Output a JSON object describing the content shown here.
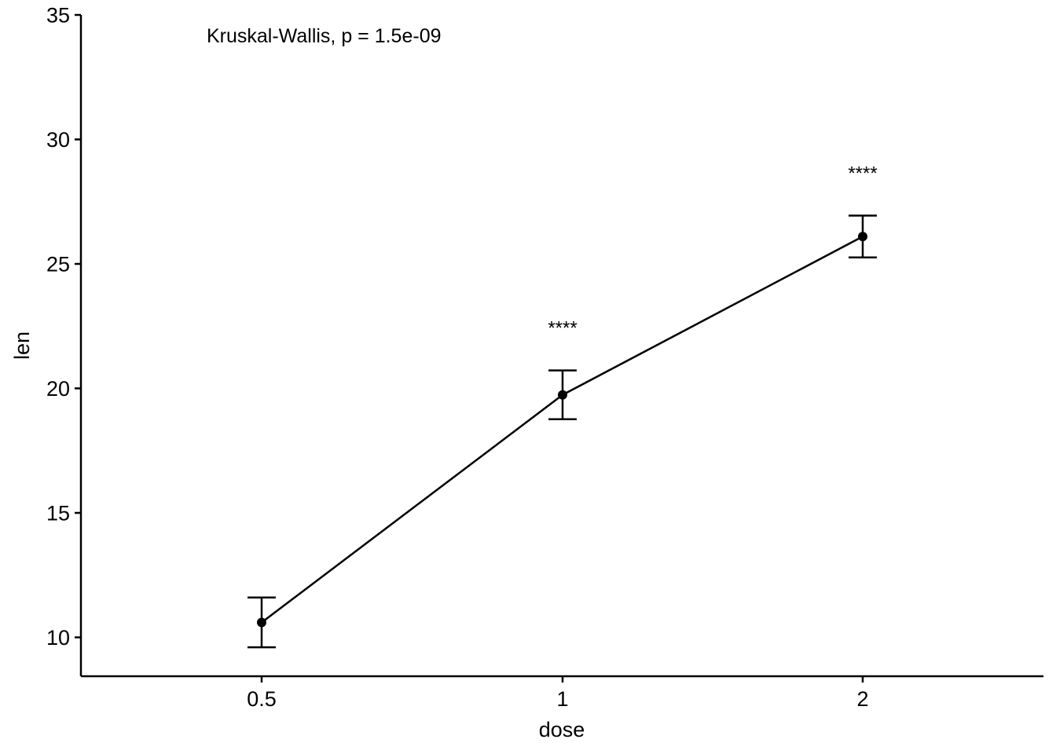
{
  "chart_data": {
    "type": "line",
    "title": "",
    "xlabel": "dose",
    "ylabel": "len",
    "categories": [
      "0.5",
      "1",
      "2"
    ],
    "series": [
      {
        "values": [
          10.6,
          19.74,
          26.1
        ],
        "error_low": [
          9.6,
          18.76,
          25.26
        ],
        "error_high": [
          11.6,
          20.72,
          26.94
        ],
        "significance": [
          "",
          "****",
          "****"
        ]
      }
    ],
    "ylim": [
      8.5,
      35
    ],
    "yticks": [
      10,
      15,
      20,
      25,
      30,
      35
    ],
    "grid": false,
    "legend": "none",
    "annotation": "Kruskal-Wallis, p = 1.5e-09",
    "colors": {
      "line": "#000000",
      "background": "#ffffff"
    }
  }
}
